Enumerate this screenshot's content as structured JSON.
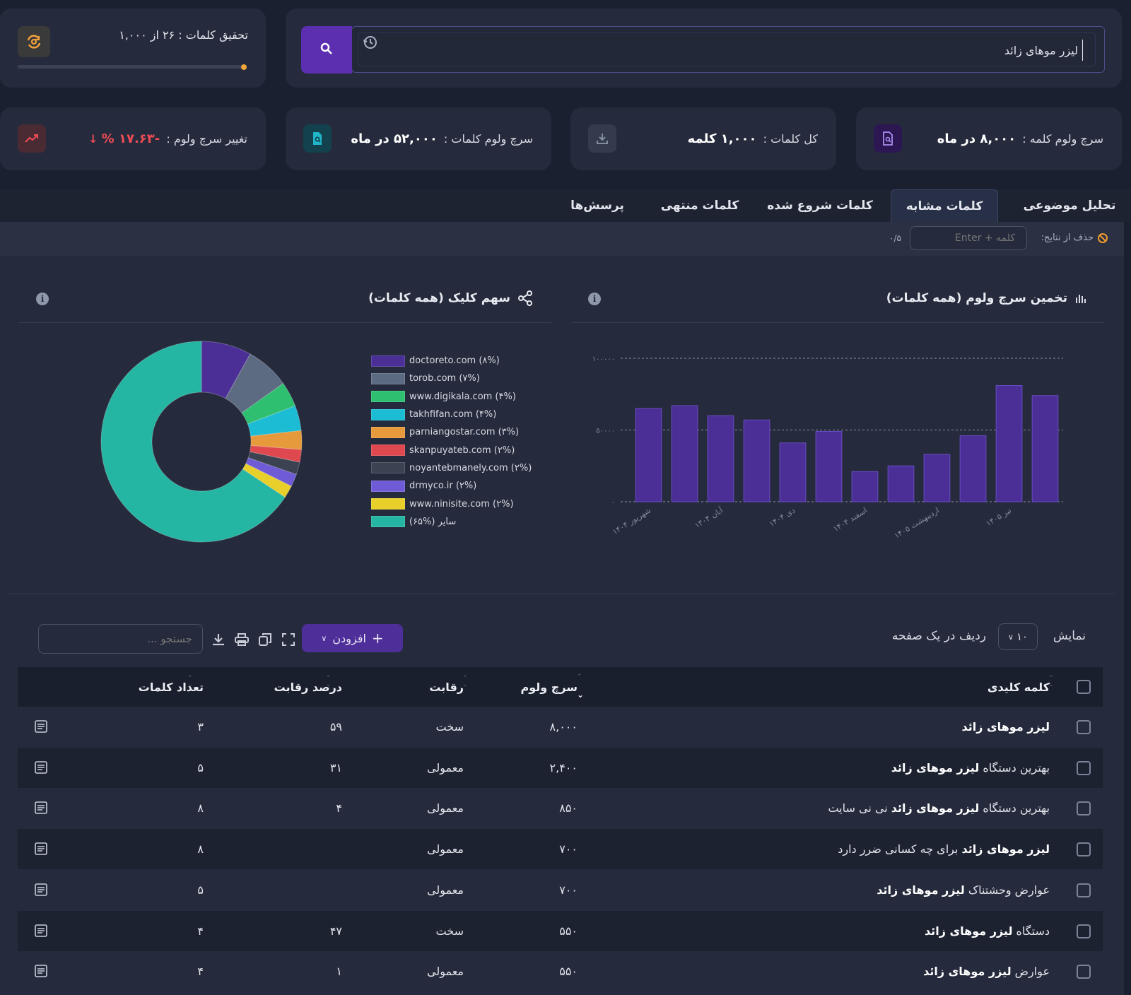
{
  "search": {
    "value": "لیزر موهای زائد",
    "button_icon": "search-icon",
    "history_icon": "history-icon"
  },
  "research": {
    "label": "تحقیق کلمات : ۲۶ از ۱,۰۰۰",
    "progress": 0.026,
    "icon": "refresh-icon"
  },
  "stats": {
    "keyword_volume": {
      "label": "سرچ ولوم کلمه :",
      "value": "۸,۰۰۰ در ماه",
      "icon": "document-search-icon"
    },
    "total_words": {
      "label": "کل کلمات :",
      "value": "۱,۰۰۰ کلمه",
      "icon": "download-icon"
    },
    "words_volume": {
      "label": "سرچ ولوم کلمات :",
      "value": "۵۲,۰۰۰ در ماه",
      "icon": "search-doc-icon"
    },
    "volume_change": {
      "label": "تغییر سرچ ولوم :",
      "value": "-۱۷.۶۳ %",
      "icon": "trend-icon"
    }
  },
  "tabs": [
    {
      "label": "تحلیل موضوعی",
      "active": false
    },
    {
      "label": "کلمات مشابه",
      "active": true
    },
    {
      "label": "کلمات شروع شده",
      "active": false
    },
    {
      "label": "کلمات منتهی",
      "active": false
    },
    {
      "label": "پرسش‌ها",
      "active": false
    }
  ],
  "filter": {
    "label": "حذف از نتایج:",
    "placeholder": "کلمه + Enter",
    "count": "۰/۵"
  },
  "charts": {
    "volume_title": "تخمین سرچ ولوم (همه کلمات)",
    "share_title": "سهم کلیک (همه کلمات)"
  },
  "chart_data": [
    {
      "type": "bar",
      "title": "تخمین سرچ ولوم (همه کلمات)",
      "categories": [
        "شهریور ۱۴۰۴",
        "مهر ۱۴۰۴",
        "آبان ۱۴۰۴",
        "آذر ۱۴۰۴",
        "دی ۱۴۰۴",
        "بهمن ۱۴۰۴",
        "اسفند ۱۴۰۴",
        "فروردین ۱۴۰۵",
        "اردیبهشت ۱۴۰۵",
        "خرداد ۱۴۰۵",
        "تیر ۱۴۰۵",
        "مرداد ۱۴۰۵"
      ],
      "tick_labels": [
        "شهریور ۱۴۰۴",
        "",
        "آبان ۱۴۰۴",
        "",
        "دی ۱۴۰۴",
        "",
        "اسفند ۱۴۰۴",
        "",
        "اردیبهشت ۱۴۰۵",
        "",
        "تیر ۱۴۰۵",
        ""
      ],
      "values": [
        65000,
        67000,
        60000,
        57000,
        41000,
        49000,
        21000,
        25000,
        33000,
        46000,
        81000,
        74000
      ],
      "ylim": [
        0,
        100000
      ],
      "yticks": [
        "۰",
        "۵۰۰۰۰",
        "۱۰۰۰۰۰"
      ],
      "color": "#4b2f96",
      "grid": true
    },
    {
      "type": "pie",
      "title": "سهم کلیک (همه کلمات)",
      "slices": [
        {
          "label": "doctoreto.com (۸%)",
          "value": 8,
          "color": "#4b2f96"
        },
        {
          "label": "torob.com (۷%)",
          "value": 7,
          "color": "#5c6b82"
        },
        {
          "label": "www.digikala.com (۴%)",
          "value": 4,
          "color": "#2fbf71"
        },
        {
          "label": "takhfifan.com (۴%)",
          "value": 4,
          "color": "#1bbcd4"
        },
        {
          "label": "parniangostar.com (۳%)",
          "value": 3,
          "color": "#e79a3c"
        },
        {
          "label": "skanpuyateb.com (۲%)",
          "value": 2,
          "color": "#e0484f"
        },
        {
          "label": "noyantebmanely.com (۲%)",
          "value": 2,
          "color": "#3b4352"
        },
        {
          "label": "drmyco.ir (۲%)",
          "value": 2,
          "color": "#6f5bd6"
        },
        {
          "label": "www.ninisite.com (۲%)",
          "value": 2,
          "color": "#e8cf2a"
        },
        {
          "label": "سایر (%۶۵)",
          "value": 65,
          "color": "#25b5a3"
        }
      ],
      "legend": "right"
    }
  ],
  "table_controls": {
    "show_label": "نمایش",
    "page_size": "۱۰",
    "rows_label": "ردیف در یک صفحه",
    "add_label": "افزودن",
    "search_placeholder": "جستجو ..."
  },
  "table": {
    "headers": [
      "کلمه کلیدی",
      "سرچ ولوم",
      "رقابت",
      "درصد رقابت",
      "تعداد کلمات"
    ],
    "rows": [
      {
        "pre": "",
        "bold": "لیزر موهای زائد",
        "post": "",
        "volume": "۸,۰۰۰",
        "competition": "سخت",
        "percent": "۵۹",
        "words": "۳"
      },
      {
        "pre": "بهترین دستگاه ",
        "bold": "لیزر موهای زائد",
        "post": "",
        "volume": "۲,۴۰۰",
        "competition": "معمولی",
        "percent": "۳۱",
        "words": "۵"
      },
      {
        "pre": "بهترین دستگاه ",
        "bold": "لیزر موهای زائد",
        "post": " نی نی سایت",
        "volume": "۸۵۰",
        "competition": "معمولی",
        "percent": "۴",
        "words": "۸"
      },
      {
        "pre": "",
        "bold": "لیزر موهای زائد",
        "post": " برای چه کسانی ضرر دارد",
        "volume": "۷۰۰",
        "competition": "معمولی",
        "percent": "",
        "words": "۸"
      },
      {
        "pre": "عوارض وحشتناک ",
        "bold": "لیزر موهای زائد",
        "post": "",
        "volume": "۷۰۰",
        "competition": "معمولی",
        "percent": "",
        "words": "۵"
      },
      {
        "pre": "دستگاه ",
        "bold": "لیزر موهای زائد",
        "post": "",
        "volume": "۵۵۰",
        "competition": "سخت",
        "percent": "۴۷",
        "words": "۴"
      },
      {
        "pre": "عوارض ",
        "bold": "لیزر موهای زائد",
        "post": "",
        "volume": "۵۵۰",
        "competition": "معمولی",
        "percent": "۱",
        "words": "۴"
      }
    ]
  }
}
